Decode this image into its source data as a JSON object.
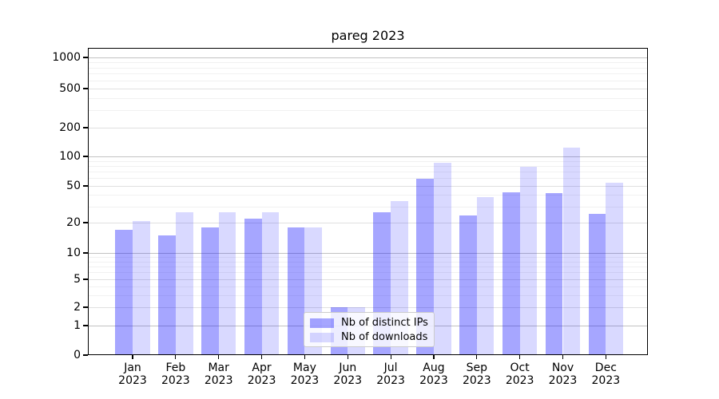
{
  "title": "pareg 2023",
  "legend": {
    "items": [
      {
        "label": "Nb of distinct IPs",
        "color_hex": "#a6a6ff",
        "color_rgba": "rgba(0,0,255,0.35)"
      },
      {
        "label": "Nb of downloads",
        "color_hex": "#d9d9ff",
        "color_rgba": "rgba(0,0,255,0.15)"
      }
    ]
  },
  "chart_data": {
    "type": "bar",
    "title": "pareg 2023",
    "categories": [
      "Jan 2023",
      "Feb 2023",
      "Mar 2023",
      "Apr 2023",
      "May 2023",
      "Jun 2023",
      "Jul 2023",
      "Aug 2023",
      "Sep 2023",
      "Oct 2023",
      "Nov 2023",
      "Dec 2023"
    ],
    "series": [
      {
        "name": "Nb of distinct IPs",
        "color_hex": "#a6a6ff",
        "color_rgba": "rgba(0,0,255,0.35)",
        "values": [
          17,
          15,
          18,
          22,
          18,
          2,
          26,
          59,
          24,
          43,
          42,
          25
        ]
      },
      {
        "name": "Nb of downloads",
        "color_hex": "#d9d9ff",
        "color_rgba": "rgba(0,0,255,0.15)",
        "values": [
          21,
          26,
          26,
          26,
          18,
          2,
          34,
          86,
          38,
          79,
          123,
          54
        ]
      }
    ],
    "xlabel": "",
    "ylabel": "",
    "yscale": "symlog",
    "yticks": [
      0,
      1,
      2,
      5,
      10,
      20,
      50,
      100,
      200,
      500,
      1000
    ],
    "minor_yticks": [
      3,
      4,
      6,
      7,
      8,
      9,
      30,
      40,
      60,
      70,
      80,
      90,
      300,
      400,
      600,
      700,
      800,
      900
    ],
    "ylim": [
      0,
      1200
    ],
    "grid": true,
    "legend_position": "lower center"
  }
}
